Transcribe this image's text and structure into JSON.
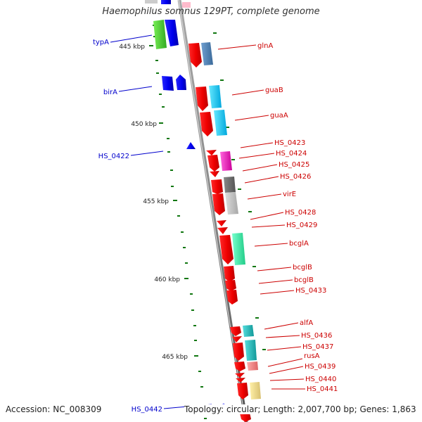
{
  "title": "Haemophilus somnus 129PT, complete genome",
  "footer": {
    "accession": "Accession: NC_008309",
    "topology": "Topology: circular; Length: 2,007,700 bp; Genes: 1,863"
  },
  "colors": {
    "forward": "#0000ff",
    "reverse": "#ff0000",
    "backbone": "#888888",
    "tick": "#117711",
    "forward_label": "#0000cc",
    "reverse_label": "#cc0000"
  },
  "scale_labels": [
    "445 kbp",
    "450 kbp",
    "455 kbp",
    "460 kbp",
    "465 kbp"
  ],
  "forward_genes": [
    "typA",
    "birA",
    "HS_0422",
    "HS_0442"
  ],
  "reverse_genes": [
    "glnA",
    "guaB",
    "guaA",
    "HS_0423",
    "HS_0424",
    "HS_0425",
    "HS_0426",
    "virE",
    "HS_0428",
    "HS_0429",
    "bcglA",
    "bcglB",
    "bcglB",
    "HS_0433",
    "alfA",
    "HS_0436",
    "HS_0437",
    "rusA",
    "HS_0439",
    "HS_0440",
    "HS_0441"
  ]
}
